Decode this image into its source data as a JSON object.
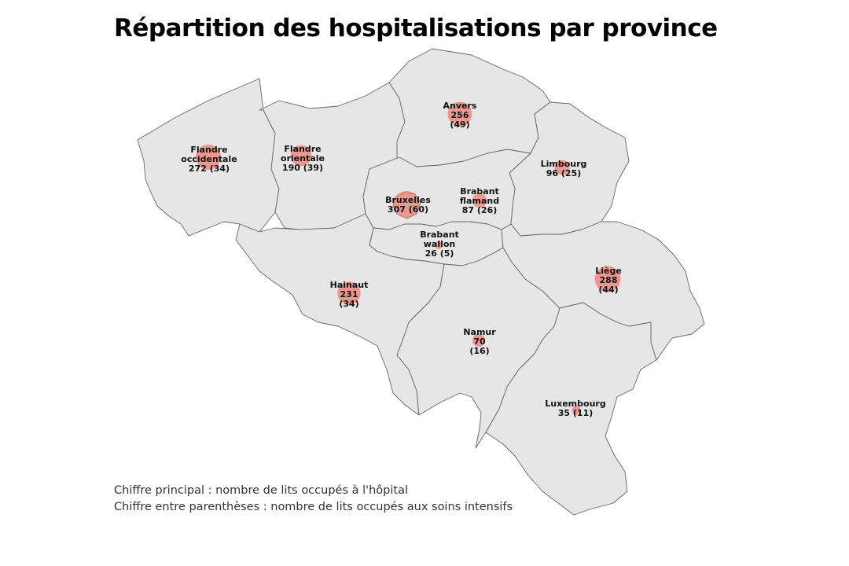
{
  "title": "Répartition des hospitalisations par province",
  "notes": [
    "Chiffre principal : nombre de lits occupés à l'hôpital",
    "Chiffre entre parenthèses : nombre de lits occupés aux soins intensifs"
  ],
  "colors": {
    "land": "#e6e6e6",
    "border": "#666666",
    "bubble": "#ef7a6f"
  },
  "provinces": [
    {
      "id": "flandre-occidentale",
      "name_lines": [
        "Flandre",
        "occidentale"
      ],
      "value_line": "272 (34)",
      "hospital": 272,
      "icu": 34
    },
    {
      "id": "flandre-orientale",
      "name_lines": [
        "Flandre",
        "orientale"
      ],
      "value_line": "190 (39)",
      "hospital": 190,
      "icu": 39
    },
    {
      "id": "anvers",
      "name_lines": [
        "Anvers",
        "256"
      ],
      "value_line": "(49)",
      "hospital": 256,
      "icu": 49
    },
    {
      "id": "limbourg",
      "name_lines": [
        "Limbourg"
      ],
      "value_line": "96 (25)",
      "hospital": 96,
      "icu": 25
    },
    {
      "id": "bruxelles",
      "name_lines": [
        "Bruxelles"
      ],
      "value_line": "307 (60)",
      "hospital": 307,
      "icu": 60
    },
    {
      "id": "brabant-flamand",
      "name_lines": [
        "Brabant",
        "flamand"
      ],
      "value_line": "87 (26)",
      "hospital": 87,
      "icu": 26
    },
    {
      "id": "brabant-wallon",
      "name_lines": [
        "Brabant",
        "wallon"
      ],
      "value_line": "26 (5)",
      "hospital": 26,
      "icu": 5
    },
    {
      "id": "hainaut",
      "name_lines": [
        "Hainaut",
        "231"
      ],
      "value_line": "(34)",
      "hospital": 231,
      "icu": 34
    },
    {
      "id": "namur",
      "name_lines": [
        "Namur",
        "70"
      ],
      "value_line": "(16)",
      "hospital": 70,
      "icu": 16
    },
    {
      "id": "liege",
      "name_lines": [
        "Liège",
        "288"
      ],
      "value_line": "(44)",
      "hospital": 288,
      "icu": 44
    },
    {
      "id": "luxembourg",
      "name_lines": [
        "Luxembourg"
      ],
      "value_line": "35 (11)",
      "hospital": 35,
      "icu": 11
    }
  ]
}
